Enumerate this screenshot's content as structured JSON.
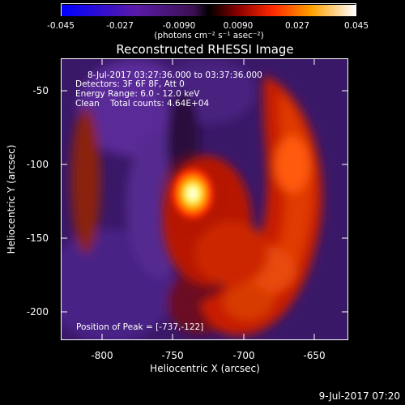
{
  "colorbar": {
    "tick_labels": [
      "-0.045",
      "-0.027",
      "-0.0090",
      "0.0090",
      "0.027",
      "0.045"
    ],
    "unit_label": "(photons cm⁻² s⁻¹ asec⁻²)"
  },
  "title": "Reconstructed RHESSI Image",
  "annotations": {
    "time_range": "8-Jul-2017 03:27:36.000 to 03:37:36.000",
    "detectors": "Detectors: 3F 6F 8F, Att 0",
    "energy": "Energy Range: 6.0 - 12.0 keV",
    "clean": "Clean    Total counts: 4.64E+04",
    "peak": "Position of Peak = [-737,-122]"
  },
  "axes": {
    "xlabel": "Heliocentric X (arcsec)",
    "ylabel": "Heliocentric Y (arcsec)",
    "xticks": [
      "-800",
      "-750",
      "-700",
      "-650"
    ],
    "yticks": [
      "-50",
      "-100",
      "-150",
      "-200"
    ]
  },
  "footer_timestamp": "9-Jul-2017 07:20",
  "chart_data": {
    "type": "heatmap",
    "title": "Reconstructed RHESSI Image",
    "xlabel": "Heliocentric X (arcsec)",
    "ylabel": "Heliocentric Y (arcsec)",
    "xlim": [
      -830,
      -627
    ],
    "ylim": [
      -220,
      -35
    ],
    "color_range": [
      -0.045,
      0.045
    ],
    "peak_position": [
      -737,
      -122
    ],
    "colormap": "purple-red-yellow-white"
  }
}
